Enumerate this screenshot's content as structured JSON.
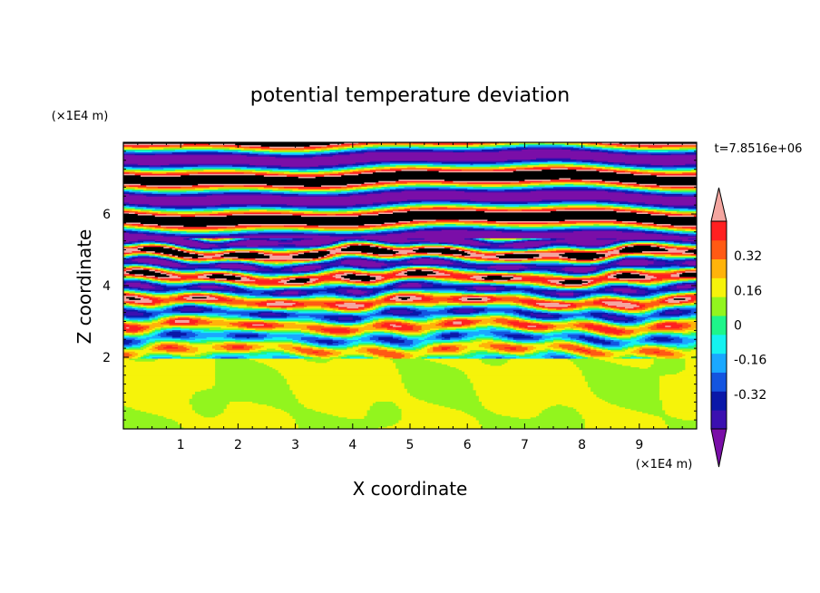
{
  "chart_data": {
    "type": "heatmap",
    "title": "potential temperature deviation",
    "xlabel": "X coordinate",
    "ylabel": "Z coordinate",
    "x_unit": "(×1E4 m)",
    "y_unit": "(×1E4 m)",
    "time_label": "t=7.8516e+06",
    "xlim": [
      0,
      10
    ],
    "ylim": [
      0,
      8
    ],
    "x_ticks": [
      1,
      2,
      3,
      4,
      5,
      6,
      7,
      8,
      9
    ],
    "y_ticks": [
      2,
      4,
      6
    ],
    "colorbar": {
      "labels": [
        "0.32",
        "0.16",
        "0",
        "-0.16",
        "-0.32"
      ],
      "label_values": [
        0.32,
        0.16,
        0,
        -0.16,
        -0.32
      ],
      "levels": [
        -0.48,
        -0.4,
        -0.32,
        -0.24,
        -0.16,
        -0.08,
        0,
        0.08,
        0.16,
        0.24,
        0.32,
        0.4,
        0.48
      ],
      "colors": [
        "#7a0ea8",
        "#3b10b0",
        "#0a18a8",
        "#1455e0",
        "#1aa8ff",
        "#15f2f0",
        "#1ef58a",
        "#92f51e",
        "#f6f30a",
        "#ffb30a",
        "#ff5a14",
        "#ff2020",
        "#f4a6a0"
      ],
      "extend": "both"
    }
  }
}
